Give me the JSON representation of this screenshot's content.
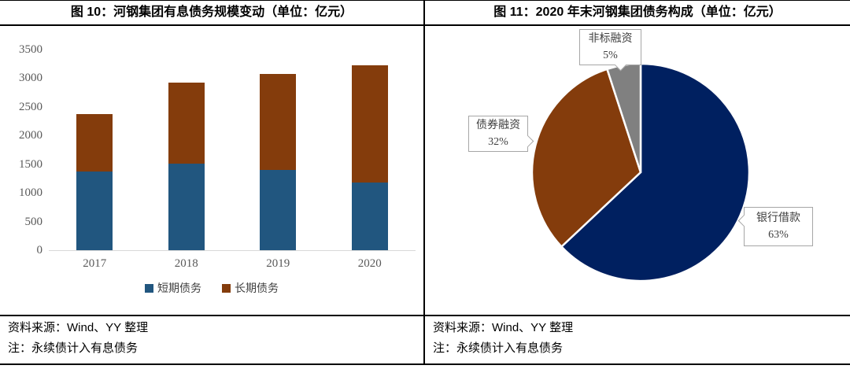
{
  "figure": {
    "left": {
      "title": "图 10：河钢集团有息债务规模变动（单位：亿元）",
      "source": "资料来源：Wind、YY 整理",
      "note": "注：永续债计入有息债务"
    },
    "right": {
      "title": "图 11：2020 年末河钢集团债务构成（单位：亿元）",
      "source": "资料来源：Wind、YY 整理",
      "note": "注：永续债计入有息债务"
    }
  },
  "chart_data": [
    {
      "type": "bar",
      "subtype": "stacked",
      "title": "图 10：河钢集团有息债务规模变动（单位：亿元）",
      "unit": "亿元",
      "categories": [
        "2017",
        "2018",
        "2019",
        "2020"
      ],
      "series": [
        {
          "name": "短期债务",
          "color": "#21567F",
          "values": [
            1370,
            1510,
            1400,
            1180
          ]
        },
        {
          "name": "长期债务",
          "color": "#843C0C",
          "values": [
            1000,
            1410,
            1670,
            2050
          ]
        }
      ],
      "totals": [
        2370,
        2920,
        3070,
        3230
      ],
      "ylim": [
        0,
        3500
      ],
      "yticks": [
        0,
        500,
        1000,
        1500,
        2000,
        2500,
        3000,
        3500
      ],
      "grid": false,
      "legend_position": "bottom",
      "axis_line_color": "#D9D9D9",
      "tick_label_color": "#595959"
    },
    {
      "type": "pie",
      "title": "图 11：2020 年末河钢集团债务构成（单位：亿元）",
      "unit": "亿元",
      "slices": [
        {
          "label": "银行借款",
          "pct": 63,
          "pct_label": "63%",
          "color": "#002060"
        },
        {
          "label": "债券融资",
          "pct": 32,
          "pct_label": "32%",
          "color": "#843C0C"
        },
        {
          "label": "非标融资",
          "pct": 5,
          "pct_label": "5%",
          "color": "#808080"
        }
      ],
      "start_angle_deg": 0,
      "direction": "clockwise",
      "callout_border_color": "#A6A6A6"
    }
  ]
}
